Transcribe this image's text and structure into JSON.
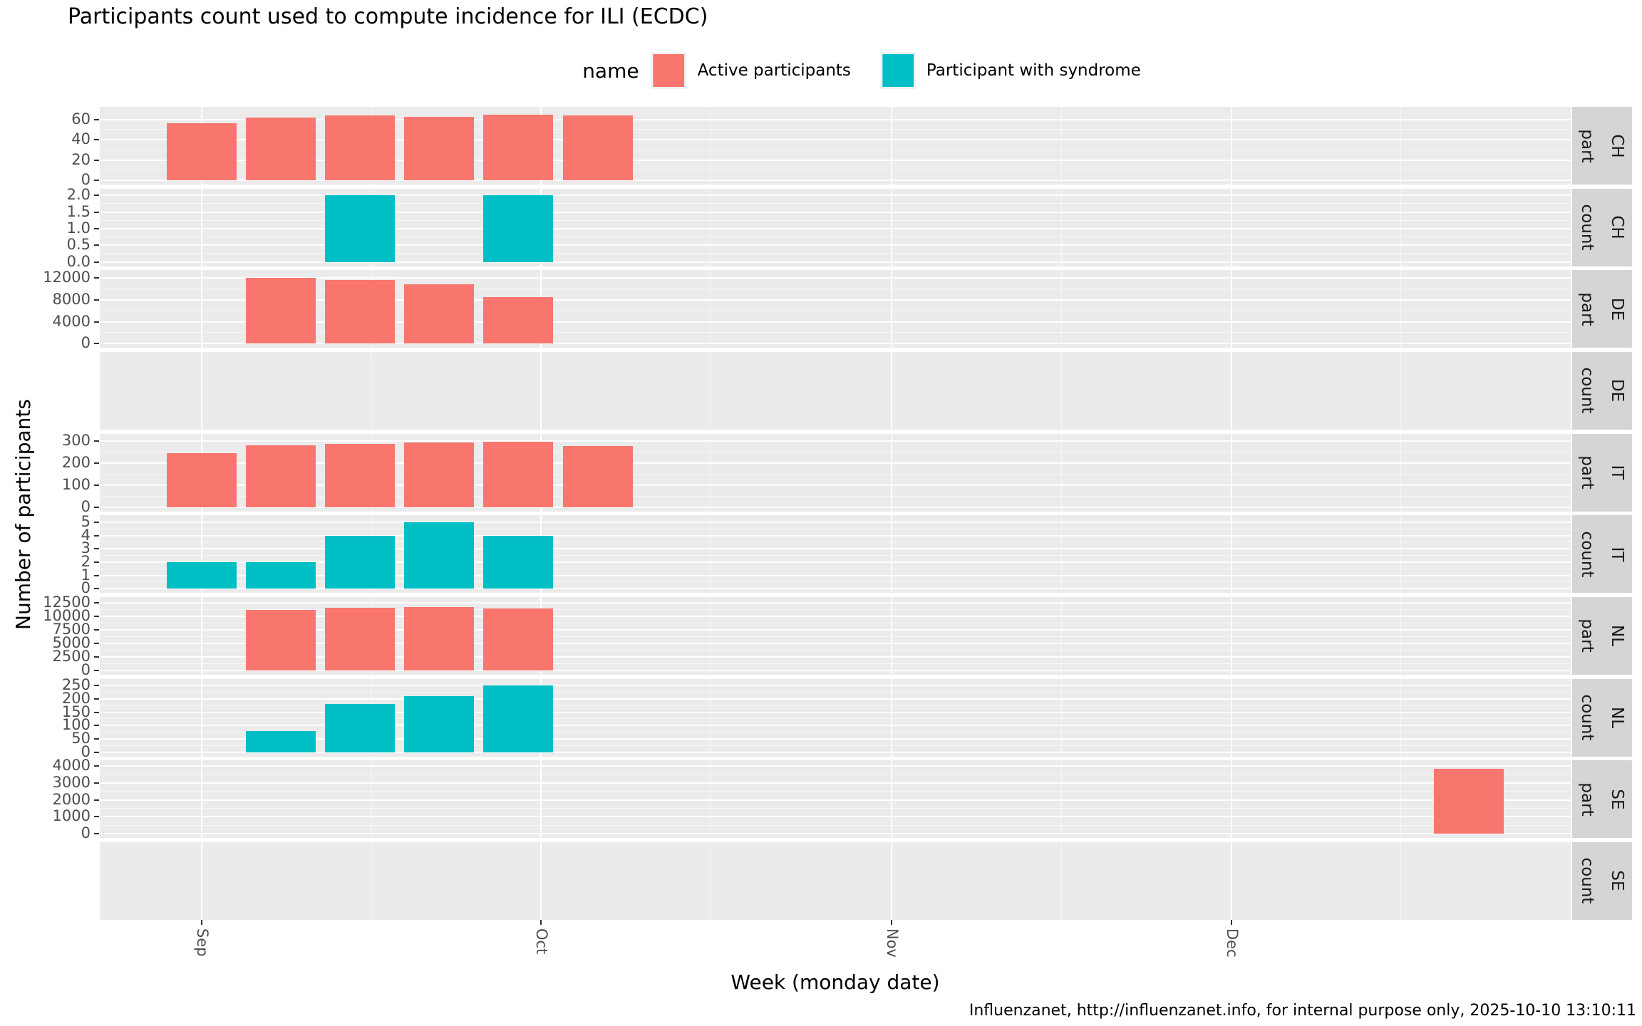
{
  "title": "Participants count used to compute incidence for ILI (ECDC)",
  "legend": {
    "title": "name",
    "items": [
      {
        "label": "Active participants",
        "series": "active",
        "color": "#F8766D"
      },
      {
        "label": "Participant with syndrome",
        "series": "syndrome",
        "color": "#00BFC4"
      }
    ]
  },
  "axes": {
    "x_title": "Week (monday date)",
    "y_title": "Number of participants",
    "domain_start": "2025-08-23",
    "domain_end": "2025-12-31",
    "x_ticks": [
      {
        "label": "Sep",
        "date": "2025-09-01"
      },
      {
        "label": "Oct",
        "date": "2025-10-01"
      },
      {
        "label": "Nov",
        "date": "2025-11-01"
      },
      {
        "label": "Dec",
        "date": "2025-12-01"
      }
    ],
    "x_minor_dates": [
      "2025-09-16",
      "2025-10-16",
      "2025-11-16",
      "2025-12-16"
    ]
  },
  "caption": "Influenzanet, http://influenzanet.info, for internal purpose only, 2025-10-10 13:10:11",
  "colors": {
    "panel_bg": "#EBEBEB",
    "grid": "#FFFFFF",
    "strip_bg": "#D5D5D5",
    "tick_text": "#4D4D4D",
    "active": "#F8766D",
    "syndrome": "#00BFC4"
  },
  "chart_data": {
    "type": "bar",
    "title": "Participants count used to compute incidence for ILI (ECDC)",
    "xlabel": "Week (monday date)",
    "ylabel": "Number of participants",
    "x_unit": "week (Monday date)",
    "legend_position": "top",
    "grid": true,
    "facets": [
      {
        "country": "CH",
        "metric": "part",
        "series": "active",
        "dmax": 69,
        "y_ticks": [
          {
            "v": 0,
            "label": "0"
          },
          {
            "v": 20,
            "label": "20"
          },
          {
            "v": 40,
            "label": "40"
          },
          {
            "v": 60,
            "label": "60"
          }
        ],
        "points": [
          {
            "date": "2025-09-01",
            "value": 56
          },
          {
            "date": "2025-09-08",
            "value": 62
          },
          {
            "date": "2025-09-15",
            "value": 64
          },
          {
            "date": "2025-09-22",
            "value": 63
          },
          {
            "date": "2025-09-29",
            "value": 65
          },
          {
            "date": "2025-10-06",
            "value": 64
          }
        ]
      },
      {
        "country": "CH",
        "metric": "count",
        "series": "syndrome",
        "dmax": 2.1,
        "y_ticks": [
          {
            "v": 0,
            "label": "0.0"
          },
          {
            "v": 0.5,
            "label": "0.5"
          },
          {
            "v": 1,
            "label": "1.0"
          },
          {
            "v": 1.5,
            "label": "1.5"
          },
          {
            "v": 2,
            "label": "2.0"
          }
        ],
        "points": [
          {
            "date": "2025-09-15",
            "value": 2
          },
          {
            "date": "2025-09-29",
            "value": 2
          }
        ]
      },
      {
        "country": "DE",
        "metric": "part",
        "series": "active",
        "dmax": 12800,
        "y_ticks": [
          {
            "v": 0,
            "label": "0"
          },
          {
            "v": 4000,
            "label": "4000"
          },
          {
            "v": 8000,
            "label": "8000"
          },
          {
            "v": 12000,
            "label": "12000"
          }
        ],
        "points": [
          {
            "date": "2025-09-08",
            "value": 12100
          },
          {
            "date": "2025-09-15",
            "value": 11700
          },
          {
            "date": "2025-09-22",
            "value": 10900
          },
          {
            "date": "2025-09-29",
            "value": 8500
          }
        ]
      },
      {
        "country": "DE",
        "metric": "count",
        "series": null,
        "dmax": 1,
        "y_ticks": [],
        "points": []
      },
      {
        "country": "IT",
        "metric": "part",
        "series": "active",
        "dmax": 316,
        "y_ticks": [
          {
            "v": 0,
            "label": "0"
          },
          {
            "v": 100,
            "label": "100"
          },
          {
            "v": 200,
            "label": "200"
          },
          {
            "v": 300,
            "label": "300"
          }
        ],
        "points": [
          {
            "date": "2025-09-01",
            "value": 245
          },
          {
            "date": "2025-09-08",
            "value": 278
          },
          {
            "date": "2025-09-15",
            "value": 287
          },
          {
            "date": "2025-09-22",
            "value": 292
          },
          {
            "date": "2025-09-29",
            "value": 295
          },
          {
            "date": "2025-10-06",
            "value": 276
          }
        ]
      },
      {
        "country": "IT",
        "metric": "count",
        "series": "syndrome",
        "dmax": 5.25,
        "y_ticks": [
          {
            "v": 0,
            "label": "0"
          },
          {
            "v": 1,
            "label": "1"
          },
          {
            "v": 2,
            "label": "2"
          },
          {
            "v": 3,
            "label": "3"
          },
          {
            "v": 4,
            "label": "4"
          },
          {
            "v": 5,
            "label": "5"
          }
        ],
        "points": [
          {
            "date": "2025-09-01",
            "value": 2
          },
          {
            "date": "2025-09-08",
            "value": 2
          },
          {
            "date": "2025-09-15",
            "value": 4
          },
          {
            "date": "2025-09-22",
            "value": 5
          },
          {
            "date": "2025-09-29",
            "value": 4
          }
        ]
      },
      {
        "country": "NL",
        "metric": "part",
        "series": "active",
        "dmax": 12900,
        "y_ticks": [
          {
            "v": 0,
            "label": "0"
          },
          {
            "v": 2500,
            "label": "2500"
          },
          {
            "v": 5000,
            "label": "5000"
          },
          {
            "v": 7500,
            "label": "7500"
          },
          {
            "v": 10000,
            "label": "10000"
          },
          {
            "v": 12500,
            "label": "12500"
          }
        ],
        "points": [
          {
            "date": "2025-09-08",
            "value": 11200
          },
          {
            "date": "2025-09-15",
            "value": 11600
          },
          {
            "date": "2025-09-22",
            "value": 11750
          },
          {
            "date": "2025-09-29",
            "value": 11500
          }
        ]
      },
      {
        "country": "NL",
        "metric": "count",
        "series": "syndrome",
        "dmax": 263,
        "y_ticks": [
          {
            "v": 0,
            "label": "0"
          },
          {
            "v": 50,
            "label": "50"
          },
          {
            "v": 100,
            "label": "100"
          },
          {
            "v": 150,
            "label": "150"
          },
          {
            "v": 200,
            "label": "200"
          },
          {
            "v": 250,
            "label": "250"
          }
        ],
        "points": [
          {
            "date": "2025-09-08",
            "value": 80
          },
          {
            "date": "2025-09-15",
            "value": 180
          },
          {
            "date": "2025-09-22",
            "value": 210
          },
          {
            "date": "2025-09-29",
            "value": 250
          }
        ]
      },
      {
        "country": "SE",
        "metric": "part",
        "series": "active",
        "dmax": 4120,
        "y_ticks": [
          {
            "v": 0,
            "label": "0"
          },
          {
            "v": 1000,
            "label": "1000"
          },
          {
            "v": 2000,
            "label": "2000"
          },
          {
            "v": 3000,
            "label": "3000"
          },
          {
            "v": 4000,
            "label": "4000"
          }
        ],
        "points": [
          {
            "date": "2025-12-22",
            "value": 3850
          }
        ]
      },
      {
        "country": "SE",
        "metric": "count",
        "series": null,
        "dmax": 1,
        "y_ticks": [],
        "points": []
      }
    ]
  }
}
